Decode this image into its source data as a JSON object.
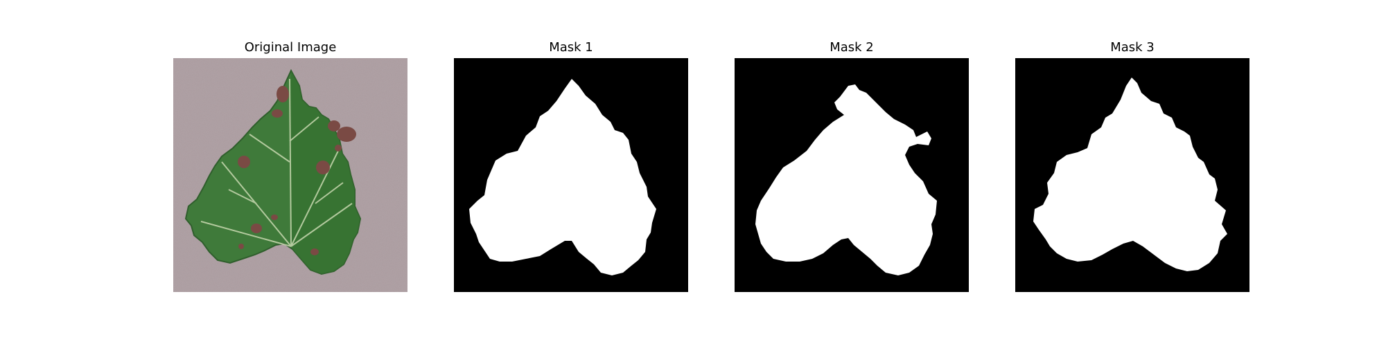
{
  "figure": {
    "panels": [
      {
        "title": "Original Image",
        "kind": "photo"
      },
      {
        "title": "Mask 1",
        "kind": "mask"
      },
      {
        "title": "Mask 2",
        "kind": "mask"
      },
      {
        "title": "Mask 3",
        "kind": "mask"
      }
    ]
  },
  "colors": {
    "background_photo": "#a8989c",
    "leaf_green": "#3f7a3a",
    "leaf_dark": "#2f5e2c",
    "vein": "#c8d8b0",
    "spot": "#7a4a44",
    "mask_bg": "#000000",
    "mask_fg": "#ffffff"
  }
}
